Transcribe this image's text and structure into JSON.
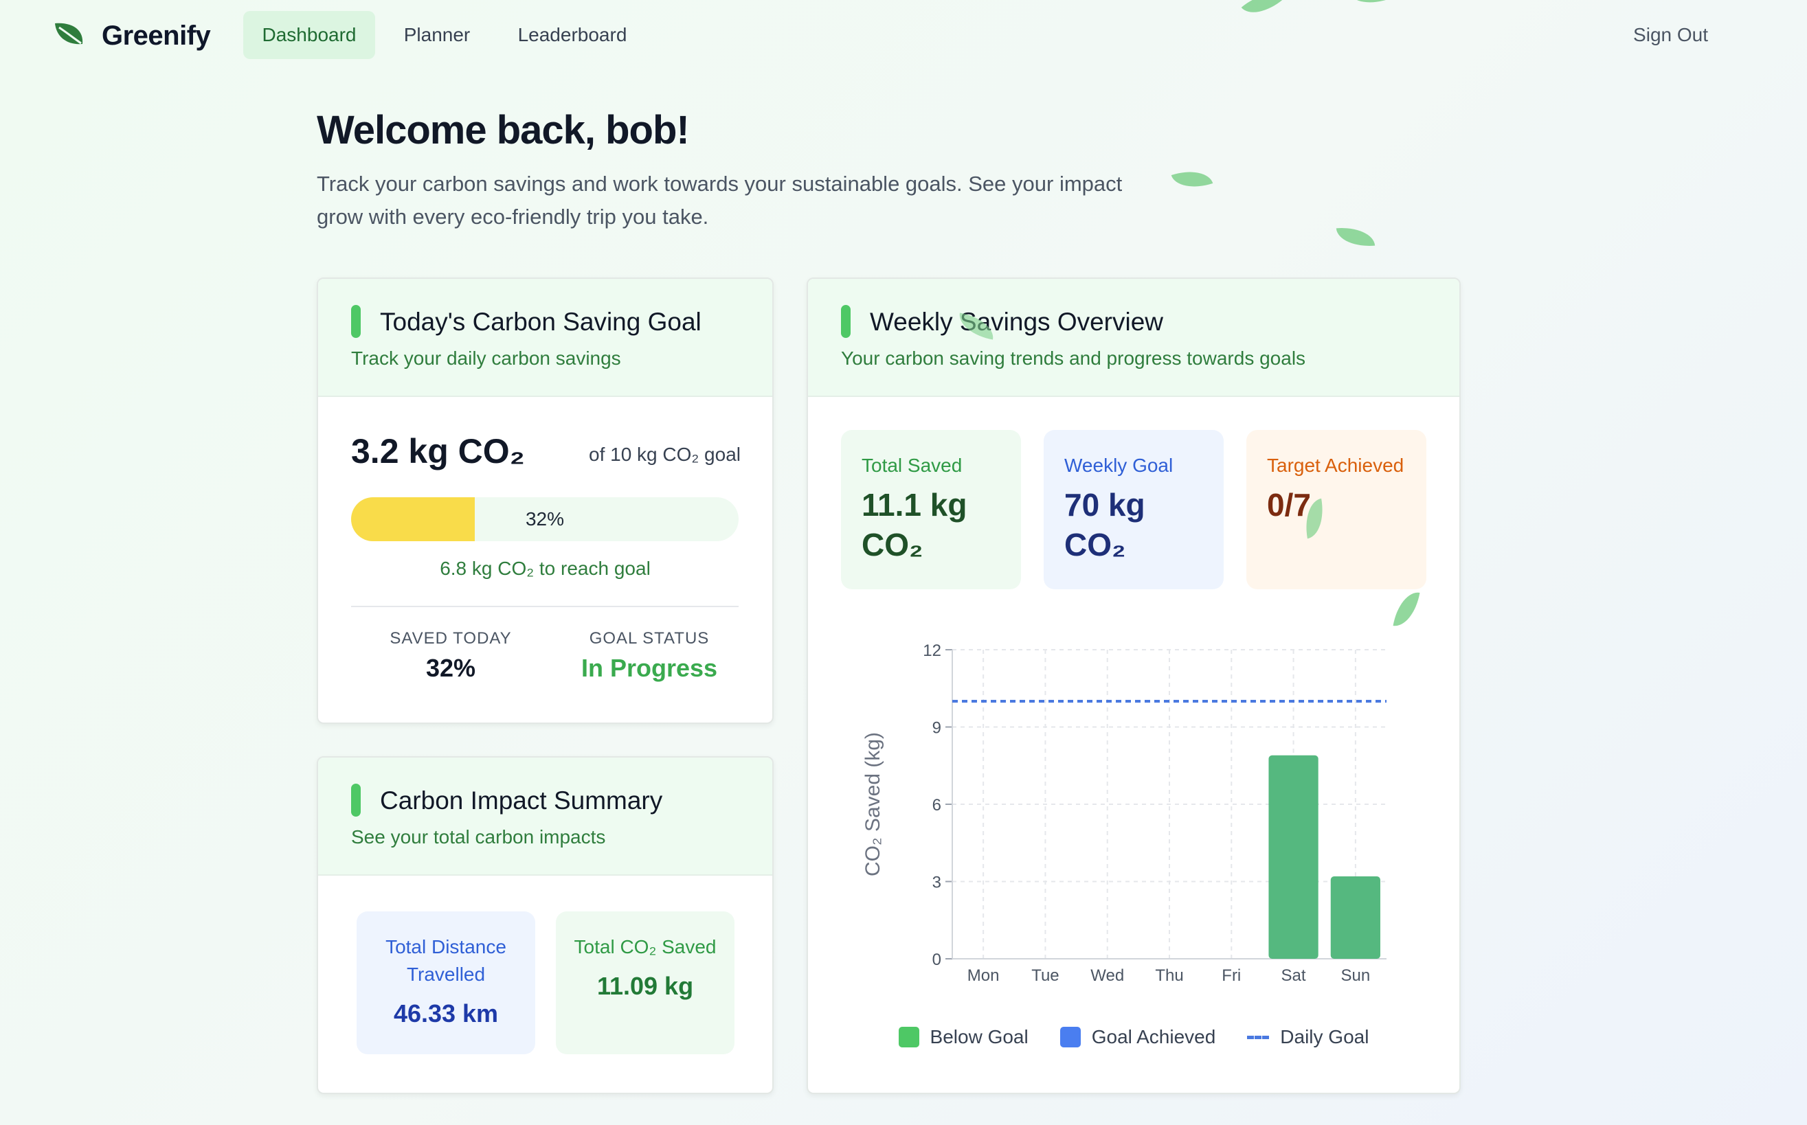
{
  "nav": {
    "brand": "Greenify",
    "tabs": [
      "Dashboard",
      "Planner",
      "Leaderboard"
    ],
    "active_tab": "Dashboard",
    "sign_out": "Sign Out"
  },
  "header": {
    "welcome": "Welcome back, bob!",
    "intro": "Track your carbon savings and work towards your sustainable goals. See your impact grow with every eco-friendly trip you take."
  },
  "goal_card": {
    "title": "Today's Carbon Saving Goal",
    "subtitle": "Track your daily carbon savings",
    "saved_amount": "3.2 kg CO₂",
    "goal_text": "of 10 kg CO₂ goal",
    "progress_percent": 32,
    "progress_label": "32%",
    "remaining_text": "6.8 kg CO₂ to reach goal",
    "saved_today_label": "SAVED TODAY",
    "saved_today_value": "32%",
    "goal_status_label": "GOAL STATUS",
    "goal_status_value": "In Progress"
  },
  "impact_card": {
    "title": "Carbon Impact Summary",
    "subtitle": "See your total carbon impacts",
    "distance_label": "Total Distance Travelled",
    "distance_value": "46.33 km",
    "co2_label": "Total CO₂ Saved",
    "co2_value": "11.09 kg"
  },
  "weekly_card": {
    "title": "Weekly Savings Overview",
    "subtitle": "Your carbon saving trends and progress towards goals",
    "total_saved_label": "Total Saved",
    "total_saved_value": "11.1 kg CO₂",
    "weekly_goal_label": "Weekly Goal",
    "weekly_goal_value": "70 kg CO₂",
    "target_label": "Target Achieved",
    "target_value": "0/7"
  },
  "chart_data": {
    "type": "bar",
    "categories": [
      "Mon",
      "Tue",
      "Wed",
      "Thu",
      "Fri",
      "Sat",
      "Sun"
    ],
    "values": [
      0,
      0,
      0,
      0,
      0,
      7.9,
      3.2
    ],
    "ylabel": "CO₂ Saved (kg)",
    "ylim": [
      0,
      12
    ],
    "yticks": [
      0,
      3,
      6,
      9,
      12
    ],
    "daily_goal": 10,
    "grid": true,
    "legend": [
      "Below Goal",
      "Goal Achieved",
      "Daily Goal"
    ],
    "legend_position": "bottom",
    "colors": {
      "below_goal": "#55b87f",
      "goal_achieved": "#4a7ef0",
      "daily_goal_line": "#4a79e0"
    }
  },
  "colors": {
    "accent_green": "#4ec865",
    "legend_below_goal": "#4ec865",
    "legend_goal_achieved": "#4a7ef0"
  }
}
